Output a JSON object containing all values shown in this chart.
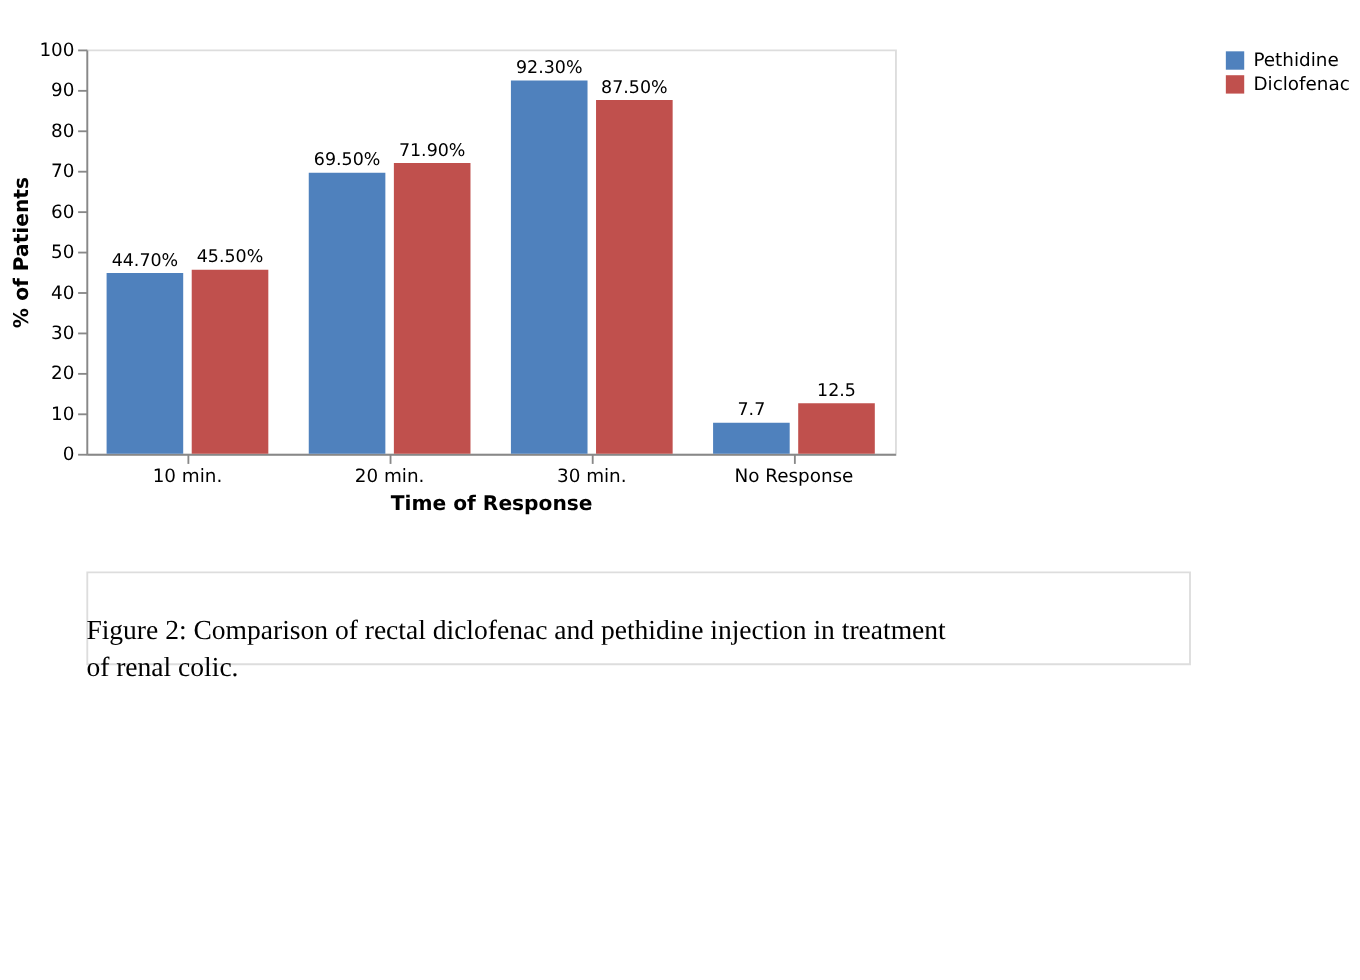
{
  "chart_data": {
    "type": "bar",
    "xlabel": "Time of Response",
    "ylabel": "% of Patients",
    "categories": [
      "10 min.",
      "20 min.",
      "30 min.",
      "No Response"
    ],
    "series": [
      {
        "name": "Pethidine",
        "color": "#4f81bd",
        "values": [
          44.7,
          69.5,
          92.3,
          7.7
        ],
        "value_labels": [
          "44.70%",
          "69.50%",
          "92.30%",
          "7.7"
        ]
      },
      {
        "name": "Diclofenac",
        "color": "#c0504d",
        "values": [
          45.5,
          71.9,
          87.5,
          12.5
        ],
        "value_labels": [
          "45.50%",
          "71.90%",
          "87.50%",
          "12.5"
        ]
      }
    ],
    "ylim": [
      0,
      100
    ],
    "yticks": [
      0,
      10,
      20,
      30,
      40,
      50,
      60,
      70,
      80,
      90,
      100
    ],
    "grid": false,
    "legend": "right",
    "annotations": [
      "Figure 2: Comparison of rectal diclofenac and pethidine injection in treatment of renal colic."
    ]
  }
}
